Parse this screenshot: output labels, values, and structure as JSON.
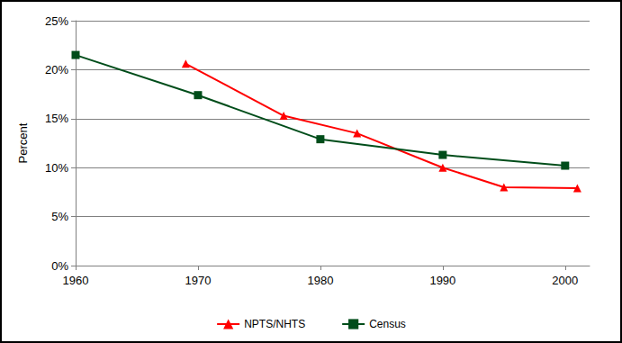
{
  "chart_data": {
    "type": "line",
    "y_label": "Percent",
    "xlim": [
      1960,
      2002
    ],
    "xticks": [
      1960,
      1970,
      1980,
      1990,
      2000
    ],
    "ylim": [
      0,
      25
    ],
    "yticks": [
      {
        "value": 0,
        "label": "0%"
      },
      {
        "value": 5,
        "label": "5%"
      },
      {
        "value": 10,
        "label": "10%"
      },
      {
        "value": 15,
        "label": "15%"
      },
      {
        "value": 20,
        "label": "20%"
      },
      {
        "value": 25,
        "label": "25%"
      }
    ],
    "grid": true,
    "legend": "bottom",
    "series": [
      {
        "name": "NPTS/NHTS",
        "color": "#ff0000",
        "marker": "triangle",
        "x": [
          1969,
          1977,
          1983,
          1990,
          1995,
          2001
        ],
        "values": [
          20.6,
          15.3,
          13.5,
          10.0,
          8.0,
          7.9
        ]
      },
      {
        "name": "Census",
        "color": "#004d1a",
        "marker": "square",
        "x": [
          1960,
          1970,
          1980,
          1990,
          2000
        ],
        "values": [
          21.5,
          17.4,
          12.9,
          11.3,
          10.2
        ]
      }
    ]
  }
}
